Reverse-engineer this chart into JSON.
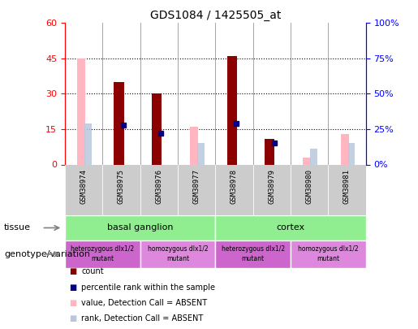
{
  "title": "GDS1084 / 1425505_at",
  "samples": [
    "GSM38974",
    "GSM38975",
    "GSM38976",
    "GSM38977",
    "GSM38978",
    "GSM38979",
    "GSM38980",
    "GSM38981"
  ],
  "count_values": [
    null,
    35,
    30,
    null,
    46,
    11,
    null,
    null
  ],
  "rank_values": [
    null,
    28,
    22,
    null,
    29,
    15,
    null,
    null
  ],
  "absent_value": [
    45,
    null,
    null,
    16,
    null,
    null,
    3,
    13
  ],
  "absent_rank": [
    29,
    null,
    null,
    15,
    null,
    null,
    11,
    15
  ],
  "ylim_left": [
    0,
    60
  ],
  "ylim_right": [
    0,
    100
  ],
  "yticks_left": [
    0,
    15,
    30,
    45,
    60
  ],
  "yticks_right": [
    0,
    25,
    50,
    75,
    100
  ],
  "ytick_labels_left": [
    "0",
    "15",
    "30",
    "45",
    "60"
  ],
  "ytick_labels_right": [
    "0%",
    "25%",
    "50%",
    "75%",
    "100%"
  ],
  "color_count": "#8B0000",
  "color_rank": "#00008B",
  "color_absent_value": "#FFB6C1",
  "color_absent_rank": "#B8C8DC",
  "tissue_color": "#90EE90",
  "geno_color_hetero": "#CC66CC",
  "geno_color_homo": "#DD88DD",
  "sample_bg_color": "#CCCCCC",
  "plot_bg": "white",
  "grid_color": "black"
}
